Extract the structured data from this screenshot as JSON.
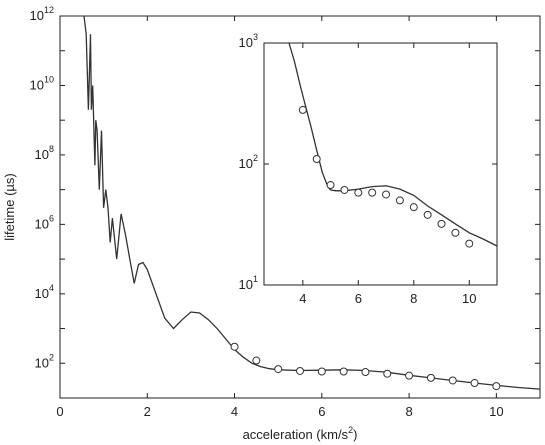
{
  "chart_data": [
    {
      "type": "line",
      "panel": "main",
      "xlabel": "acceleration (km/s",
      "xlabel_sup": "2",
      "xlabel_tail": ")",
      "ylabel": "lifetime (µs)",
      "xlim": [
        0,
        11
      ],
      "ylim": [
        10,
        1000000000000
      ],
      "yscale": "log",
      "xticks": [
        0,
        2,
        4,
        6,
        8,
        10
      ],
      "yticks": [
        {
          "value": 100,
          "base": "10",
          "exp": "2"
        },
        {
          "value": 10000,
          "base": "10",
          "exp": "4"
        },
        {
          "value": 1000000,
          "base": "10",
          "exp": "6"
        },
        {
          "value": 100000000,
          "base": "10",
          "exp": "8"
        },
        {
          "value": 10000000000,
          "base": "10",
          "exp": "10"
        },
        {
          "value": 1000000000000,
          "base": "10",
          "exp": "12"
        }
      ],
      "series": [
        {
          "kind": "line",
          "x": [
            0.55,
            0.6,
            0.65,
            0.7,
            0.72,
            0.75,
            0.8,
            0.82,
            0.85,
            0.9,
            0.95,
            1.0,
            1.05,
            1.1,
            1.15,
            1.2,
            1.3,
            1.4,
            1.5,
            1.6,
            1.7,
            1.8,
            1.9,
            2.0,
            2.2,
            2.4,
            2.6,
            2.8,
            3.0,
            3.2,
            3.4,
            3.6,
            3.8,
            4.0,
            4.2,
            4.4,
            4.6,
            4.8,
            5.0,
            5.5,
            6.0,
            6.5,
            7.0,
            7.5,
            8.0,
            8.5,
            9.0,
            9.5,
            10.0,
            10.5,
            11.0
          ],
          "y": [
            1000000000000,
            300000000000,
            2000000000,
            300000000000,
            2000000000,
            10000000000,
            50000000,
            1000000000,
            500000000,
            10000000,
            500000000,
            3000000,
            10000000,
            3000000,
            300000,
            1500000,
            100000,
            2000000,
            500000,
            100000,
            20000,
            70000,
            80000,
            50000,
            10000,
            2000,
            1000,
            1800,
            3000,
            2800,
            1800,
            1000,
            500,
            250,
            150,
            100,
            80,
            70,
            65,
            62,
            63,
            65,
            62,
            55,
            45,
            38,
            32,
            27,
            23,
            20,
            18
          ]
        },
        {
          "kind": "scatter",
          "marker": "open-circle",
          "x": [
            4.0,
            4.5,
            5.0,
            5.5,
            6.0,
            6.5,
            7.0,
            7.5,
            8.0,
            8.5,
            9.0,
            9.5,
            10.0
          ],
          "y": [
            300,
            120,
            68,
            60,
            58,
            58,
            56,
            50,
            44,
            38,
            32,
            27,
            22
          ]
        }
      ],
      "grid": false
    },
    {
      "type": "line",
      "panel": "inset",
      "xlim": [
        2.6,
        11
      ],
      "ylim": [
        10,
        1000
      ],
      "yscale": "log",
      "xticks": [
        4,
        6,
        8,
        10
      ],
      "yticks": [
        {
          "value": 10,
          "base": "10",
          "exp": "1"
        },
        {
          "value": 100,
          "base": "10",
          "exp": "2"
        },
        {
          "value": 1000,
          "base": "10",
          "exp": "3"
        }
      ],
      "series": [
        {
          "kind": "line",
          "x": [
            3.5,
            3.7,
            3.9,
            4.1,
            4.3,
            4.5,
            4.7,
            4.9,
            5.0,
            5.2,
            5.5,
            6.0,
            6.5,
            7.0,
            7.5,
            8.0,
            8.5,
            9.0,
            9.5,
            10.0,
            10.5,
            11.0
          ],
          "y": [
            1000,
            700,
            450,
            300,
            200,
            130,
            85,
            65,
            61,
            60,
            60,
            62,
            65,
            66,
            62,
            55,
            45,
            38,
            32,
            27,
            24,
            21
          ]
        },
        {
          "kind": "scatter",
          "marker": "open-circle",
          "x": [
            4.0,
            4.5,
            5.0,
            5.5,
            6.0,
            6.5,
            7.0,
            7.5,
            8.0,
            8.5,
            9.0,
            9.5,
            10.0
          ],
          "y": [
            280,
            110,
            67,
            61,
            58,
            58,
            56,
            50,
            44,
            38,
            32,
            27,
            22
          ]
        }
      ],
      "grid": false
    }
  ]
}
